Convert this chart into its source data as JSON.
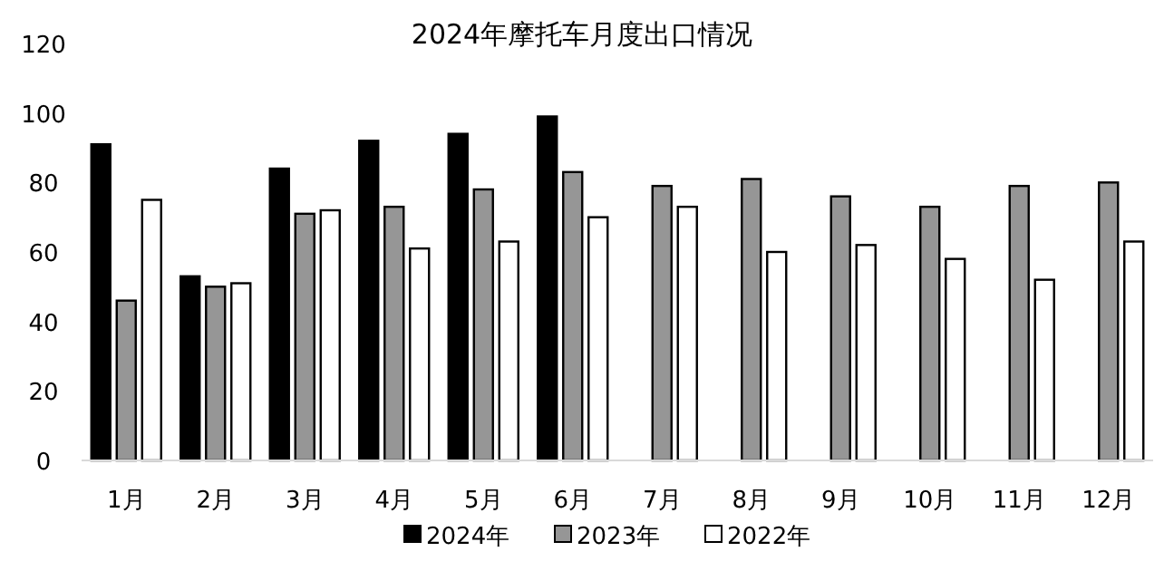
{
  "chart_data": {
    "type": "bar",
    "title": "2024年摩托车月度出口情况",
    "categories": [
      "1月",
      "2月",
      "3月",
      "4月",
      "5月",
      "6月",
      "7月",
      "8月",
      "9月",
      "10月",
      "11月",
      "12月"
    ],
    "series": [
      {
        "name": "2024年",
        "color": "#000000",
        "values": [
          91,
          53,
          84,
          92,
          94,
          99,
          null,
          null,
          null,
          null,
          null,
          null
        ]
      },
      {
        "name": "2023年",
        "color": "#969696",
        "values": [
          46,
          50,
          71,
          73,
          78,
          83,
          79,
          81,
          76,
          73,
          79,
          80
        ]
      },
      {
        "name": "2022年",
        "color": "#ffffff",
        "values": [
          75,
          51,
          72,
          61,
          63,
          70,
          73,
          60,
          62,
          58,
          52,
          63
        ]
      }
    ],
    "ylim": [
      0,
      120
    ],
    "yticks": [
      0,
      20,
      40,
      60,
      80,
      100,
      120
    ],
    "grid": false,
    "legend": "bottom"
  }
}
